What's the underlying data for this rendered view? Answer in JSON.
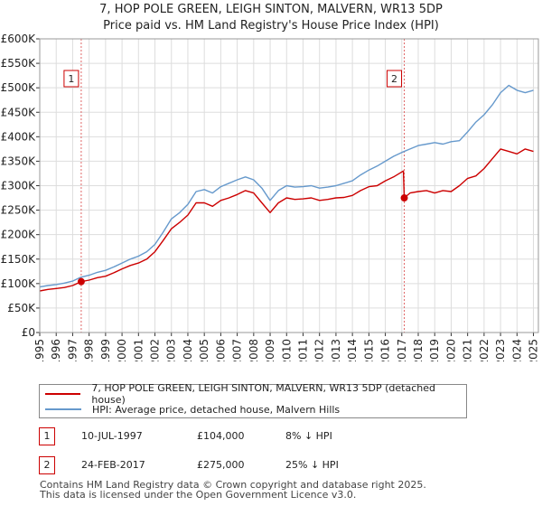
{
  "chart_data": {
    "type": "line",
    "title": "7, HOP POLE GREEN, LEIGH SINTON, MALVERN, WR13 5DP",
    "subtitle": "Price paid vs. HM Land Registry's House Price Index (HPI)",
    "xlim": [
      1995,
      2025.3
    ],
    "ylim": [
      0,
      600000
    ],
    "yticks": [
      0,
      50000,
      100000,
      150000,
      200000,
      250000,
      300000,
      350000,
      400000,
      450000,
      500000,
      550000,
      600000
    ],
    "ytick_labels": [
      "£0",
      "£50K",
      "£100K",
      "£150K",
      "£200K",
      "£250K",
      "£300K",
      "£350K",
      "£400K",
      "£450K",
      "£500K",
      "£550K",
      "£600K"
    ],
    "xticks": [
      1995,
      1996,
      1997,
      1998,
      1999,
      2000,
      2001,
      2002,
      2003,
      2004,
      2005,
      2006,
      2007,
      2008,
      2009,
      2010,
      2011,
      2012,
      2013,
      2014,
      2015,
      2016,
      2017,
      2018,
      2019,
      2020,
      2021,
      2022,
      2023,
      2024,
      2025
    ],
    "xtick_labels": [
      "1995",
      "1996",
      "1997",
      "1998",
      "1999",
      "2000",
      "2001",
      "2002",
      "2003",
      "2004",
      "2005",
      "2006",
      "2007",
      "2008",
      "2009",
      "2010",
      "2011",
      "2012",
      "2013",
      "2014",
      "2015",
      "2016",
      "2017",
      "2018",
      "2019",
      "2020",
      "2021",
      "2022",
      "2023",
      "2024",
      "2025"
    ],
    "series": [
      {
        "name": "7, HOP POLE GREEN, LEIGH SINTON, MALVERN, WR13 5DP (detached house)",
        "color": "#cc0000",
        "x": [
          1995.0,
          1995.5,
          1996.0,
          1996.5,
          1997.0,
          1997.52,
          1998.0,
          1998.5,
          1999.0,
          1999.5,
          2000.0,
          2000.5,
          2001.0,
          2001.5,
          2002.0,
          2002.5,
          2003.0,
          2003.5,
          2004.0,
          2004.5,
          2005.0,
          2005.5,
          2006.0,
          2006.5,
          2007.0,
          2007.5,
          2008.0,
          2008.5,
          2009.0,
          2009.5,
          2010.0,
          2010.5,
          2011.0,
          2011.5,
          2012.0,
          2012.5,
          2013.0,
          2013.5,
          2014.0,
          2014.5,
          2015.0,
          2015.5,
          2016.0,
          2016.5,
          2017.1,
          2017.15,
          2017.5,
          2018.0,
          2018.5,
          2019.0,
          2019.5,
          2020.0,
          2020.5,
          2021.0,
          2021.5,
          2022.0,
          2022.5,
          2023.0,
          2023.5,
          2024.0,
          2024.5,
          2025.0
        ],
        "y": [
          85000,
          88000,
          90000,
          92000,
          96000,
          104000,
          107000,
          112000,
          115000,
          122000,
          130000,
          137000,
          142000,
          150000,
          165000,
          188000,
          212000,
          225000,
          240000,
          265000,
          265000,
          258000,
          270000,
          275000,
          282000,
          290000,
          285000,
          265000,
          245000,
          265000,
          275000,
          272000,
          273000,
          275000,
          270000,
          272000,
          275000,
          276000,
          280000,
          290000,
          298000,
          300000,
          310000,
          318000,
          330000,
          275000,
          285000,
          288000,
          290000,
          285000,
          290000,
          288000,
          300000,
          315000,
          320000,
          335000,
          355000,
          375000,
          370000,
          365000,
          375000,
          370000
        ]
      },
      {
        "name": "HPI: Average price, detached house, Malvern Hills",
        "color": "#6699cc",
        "x": [
          1995.0,
          1995.5,
          1996.0,
          1996.5,
          1997.0,
          1997.5,
          1998.0,
          1998.5,
          1999.0,
          1999.5,
          2000.0,
          2000.5,
          2001.0,
          2001.5,
          2002.0,
          2002.5,
          2003.0,
          2003.5,
          2004.0,
          2004.5,
          2005.0,
          2005.5,
          2006.0,
          2006.5,
          2007.0,
          2007.5,
          2008.0,
          2008.5,
          2009.0,
          2009.5,
          2010.0,
          2010.5,
          2011.0,
          2011.5,
          2012.0,
          2012.5,
          2013.0,
          2013.5,
          2014.0,
          2014.5,
          2015.0,
          2015.5,
          2016.0,
          2016.5,
          2017.0,
          2017.5,
          2018.0,
          2018.5,
          2019.0,
          2019.5,
          2020.0,
          2020.5,
          2021.0,
          2021.5,
          2022.0,
          2022.5,
          2023.0,
          2023.5,
          2024.0,
          2024.5,
          2025.0
        ],
        "y": [
          93000,
          96000,
          98000,
          101000,
          105000,
          113000,
          117000,
          123000,
          127000,
          134000,
          142000,
          150000,
          156000,
          165000,
          180000,
          205000,
          232000,
          245000,
          262000,
          288000,
          292000,
          285000,
          298000,
          305000,
          312000,
          318000,
          312000,
          295000,
          270000,
          290000,
          300000,
          297000,
          298000,
          300000,
          295000,
          297000,
          300000,
          305000,
          310000,
          322000,
          332000,
          340000,
          350000,
          360000,
          368000,
          375000,
          382000,
          385000,
          388000,
          385000,
          390000,
          392000,
          410000,
          430000,
          445000,
          465000,
          490000,
          505000,
          495000,
          490000,
          495000
        ]
      }
    ],
    "markers": [
      {
        "label": "1",
        "x": 1997.52,
        "y": 104000
      },
      {
        "label": "2",
        "x": 2017.15,
        "y": 275000
      }
    ]
  },
  "legend": {
    "property_label": "7, HOP POLE GREEN, LEIGH SINTON, MALVERN, WR13 5DP (detached house)",
    "hpi_label": "HPI: Average price, detached house, Malvern Hills"
  },
  "transactions": [
    {
      "num": "1",
      "date": "10-JUL-1997",
      "price": "£104,000",
      "hpi": "8% ↓ HPI"
    },
    {
      "num": "2",
      "date": "24-FEB-2017",
      "price": "£275,000",
      "hpi": "25% ↓ HPI"
    }
  ],
  "footer": {
    "line1": "Contains HM Land Registry data © Crown copyright and database right 2025.",
    "line2": "This data is licensed under the Open Government Licence v3.0."
  }
}
